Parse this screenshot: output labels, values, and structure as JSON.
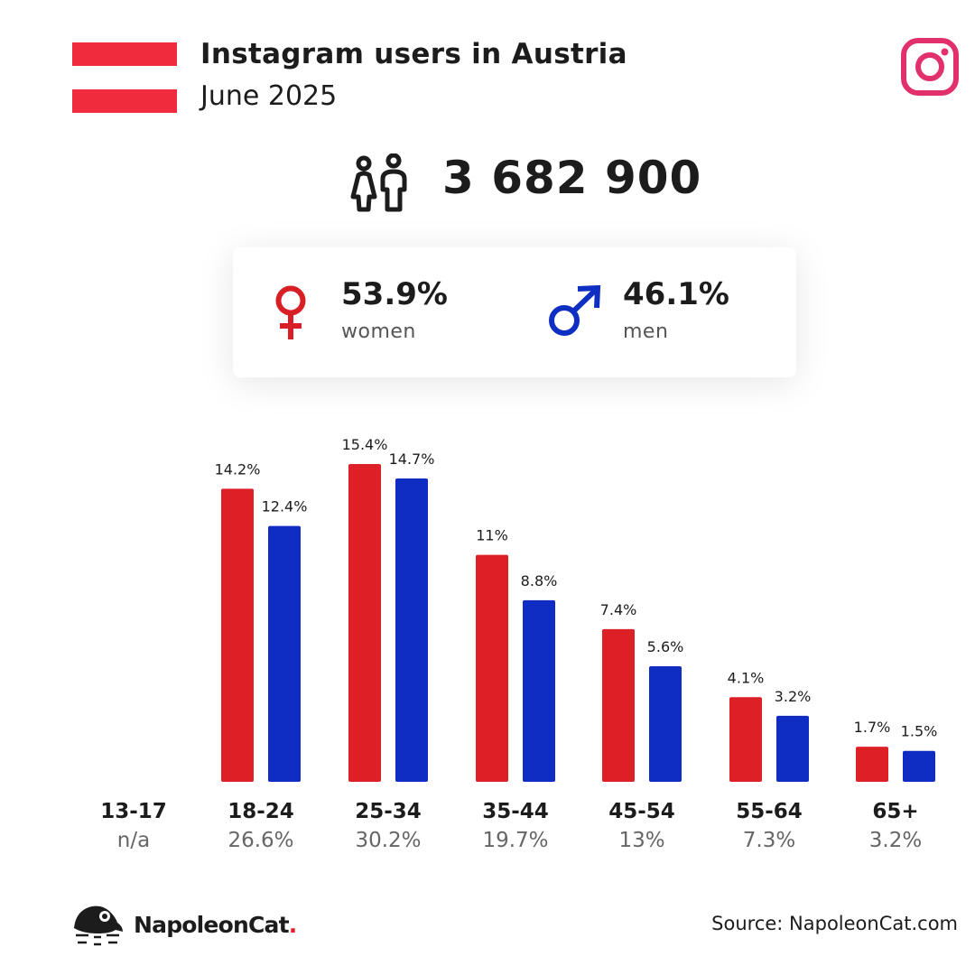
{
  "header": {
    "title": "Instagram users in Austria",
    "subtitle": "June 2025",
    "flag_colors": [
      "#ef2b3d",
      "#ffffff",
      "#ef2b3d"
    ],
    "instagram_color": "#e1306c"
  },
  "summary": {
    "total_users": "3 682 900",
    "icon": "users-icon"
  },
  "gender": {
    "women": {
      "percent": "53.9%",
      "label": "women",
      "color": "#d91f26",
      "icon": "female-symbol-icon"
    },
    "men": {
      "percent": "46.1%",
      "label": "men",
      "color": "#0f2ec2",
      "icon": "male-symbol-icon"
    }
  },
  "chart_data": {
    "type": "bar",
    "categories": [
      "13-17",
      "18-24",
      "25-34",
      "35-44",
      "45-54",
      "55-64",
      "65+"
    ],
    "category_totals": [
      "n/a",
      "26.6%",
      "30.2%",
      "19.7%",
      "13%",
      "7.3%",
      "3.2%"
    ],
    "series": [
      {
        "name": "women",
        "color": "#dd1f26",
        "values": [
          null,
          14.2,
          15.4,
          11,
          7.4,
          4.1,
          1.7
        ],
        "labels": [
          "",
          "14.2%",
          "15.4%",
          "11%",
          "7.4%",
          "4.1%",
          "1.7%"
        ]
      },
      {
        "name": "men",
        "color": "#102dc3",
        "values": [
          null,
          12.4,
          14.7,
          8.8,
          5.6,
          3.2,
          1.5
        ],
        "labels": [
          "",
          "12.4%",
          "14.7%",
          "8.8%",
          "5.6%",
          "3.2%",
          "1.5%"
        ]
      }
    ],
    "ylim": [
      0,
      15.4
    ]
  },
  "footer": {
    "brand_name": "NapoleonCat",
    "brand_dot": ".",
    "source": "Source: NapoleonCat.com"
  }
}
